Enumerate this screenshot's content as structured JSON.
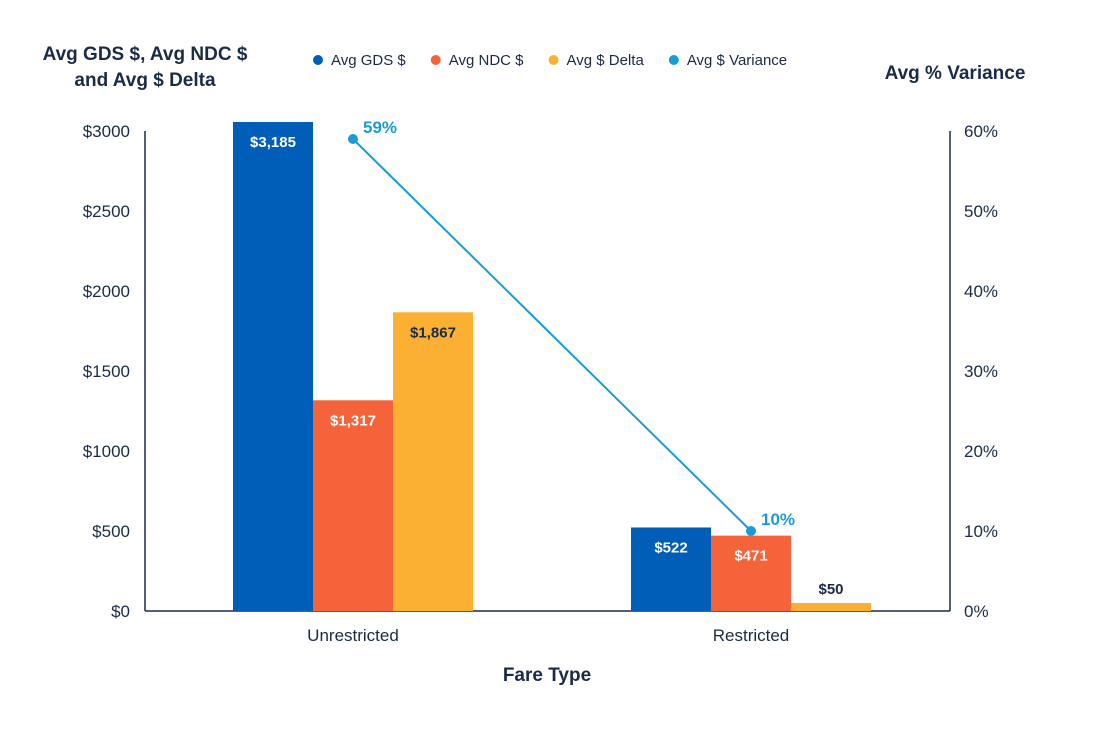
{
  "chart_data": {
    "type": "bar",
    "title": "",
    "xlabel": "Fare Type",
    "ylabel": "Avg GDS $, Avg NDC $ and Avg $ Delta",
    "ylabel_lines": [
      "Avg GDS $, Avg NDC $",
      "and Avg $ Delta"
    ],
    "y2label": "Avg % Variance",
    "categories": [
      "Unrestricted",
      "Restricted"
    ],
    "ylim": [
      0,
      3000
    ],
    "y2lim": [
      0,
      60
    ],
    "yticks": [
      "$0",
      "$500",
      "$1000",
      "$1500",
      "$2000",
      "$2500",
      "$3000"
    ],
    "y2ticks": [
      "0%",
      "10%",
      "20%",
      "30%",
      "40%",
      "50%",
      "60%"
    ],
    "legend_position": "top",
    "series": [
      {
        "name": "Avg GDS $",
        "type": "bar",
        "color": "#005eb8",
        "label_color": "#ffffff",
        "values": [
          3185,
          522
        ],
        "labels": [
          "$3,185",
          "$522"
        ]
      },
      {
        "name": "Avg NDC $",
        "type": "bar",
        "color": "#f4633a",
        "label_color": "#ffffff",
        "values": [
          1317,
          471
        ],
        "labels": [
          "$1,317",
          "$471"
        ]
      },
      {
        "name": "Avg $ Delta",
        "type": "bar",
        "color": "#fbb034",
        "label_color": "#1a2b47",
        "values": [
          1867,
          50
        ],
        "labels": [
          "$1,867",
          "$50"
        ]
      },
      {
        "name": "Avg $ Variance",
        "type": "line",
        "axis": "right",
        "color": "#1a9bd7",
        "values": [
          59,
          10
        ],
        "labels": [
          "59%",
          "10%"
        ]
      }
    ]
  }
}
